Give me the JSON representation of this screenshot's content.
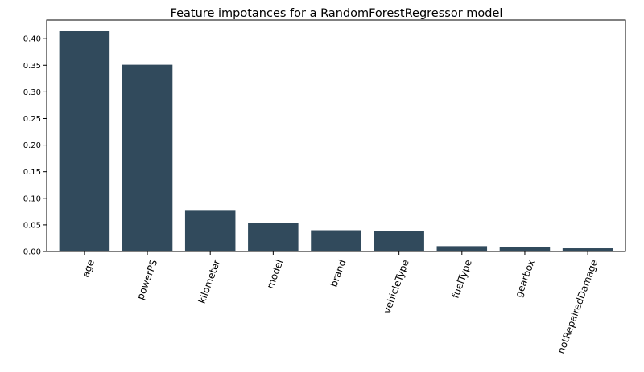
{
  "chart_data": {
    "type": "bar",
    "title": "Feature impotances for a RandomForestRegressor model",
    "xlabel": "",
    "ylabel": "",
    "categories": [
      "age",
      "powerPS",
      "kilometer",
      "model",
      "brand",
      "vehicleType",
      "fuelType",
      "gearbox",
      "notRepairedDamage"
    ],
    "values": [
      0.415,
      0.351,
      0.078,
      0.054,
      0.04,
      0.039,
      0.01,
      0.008,
      0.006
    ],
    "ylim": [
      0,
      0.435
    ],
    "yticks": [
      0.0,
      0.05,
      0.1,
      0.15,
      0.2,
      0.25,
      0.3,
      0.35,
      0.4
    ],
    "ytick_labels": [
      "0.00",
      "0.05",
      "0.10",
      "0.15",
      "0.20",
      "0.25",
      "0.30",
      "0.35",
      "0.40"
    ],
    "grid": false,
    "legend": "none",
    "xtick_rotation_deg": 70,
    "bar_color": "#314a5c"
  }
}
